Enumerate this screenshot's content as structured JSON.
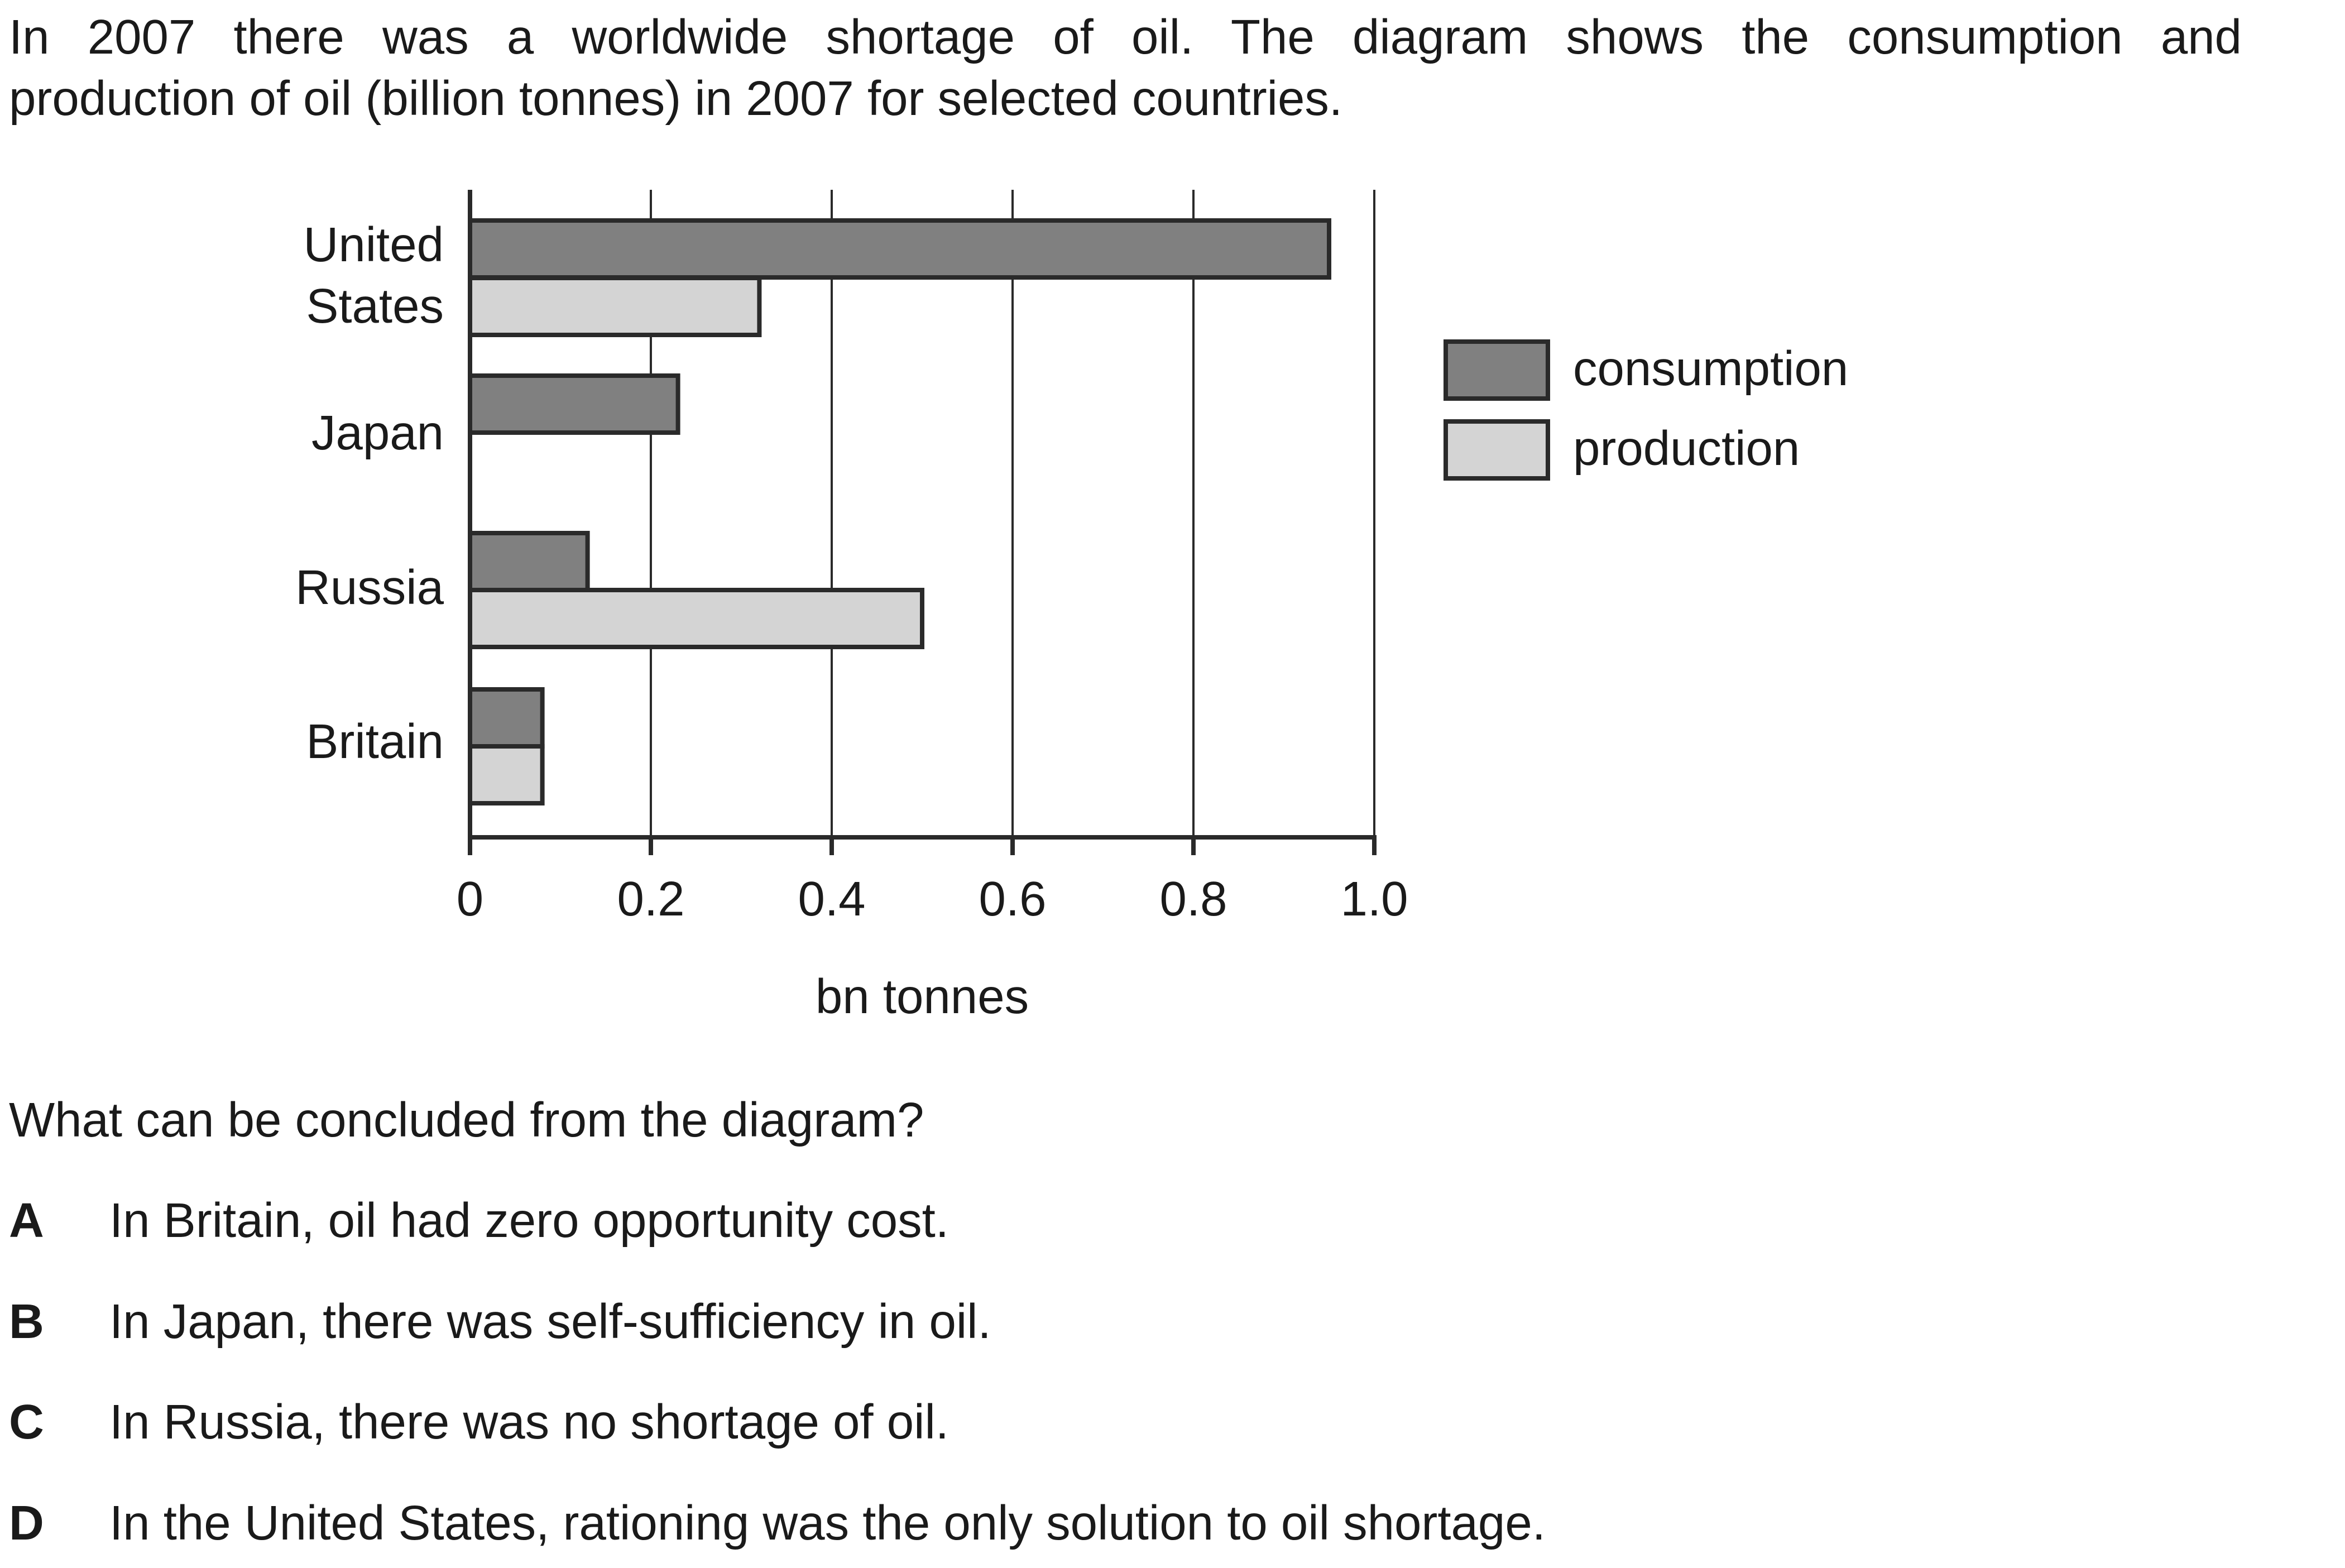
{
  "intro": {
    "line1": "In 2007 there was a worldwide shortage of oil. The diagram shows the consumption and",
    "line2": "production of oil (billion tonnes) in 2007 for selected countries."
  },
  "chart_data": {
    "type": "bar",
    "orientation": "horizontal",
    "categories": [
      [
        "United",
        "States"
      ],
      [
        "Japan"
      ],
      [
        "Russia"
      ],
      [
        "Britain"
      ]
    ],
    "series": [
      {
        "name": "consumption",
        "values": [
          0.95,
          0.23,
          0.13,
          0.08
        ],
        "color": "#808080"
      },
      {
        "name": "production",
        "values": [
          0.32,
          0,
          0.5,
          0.08
        ],
        "color": "#d4d4d4"
      }
    ],
    "xlabel": "bn tonnes",
    "xlim": [
      0,
      1.0
    ],
    "xticks": [
      "0",
      "0.2",
      "0.4",
      "0.6",
      "0.8",
      "1.0"
    ],
    "grid": "vertical",
    "legend_position": "right"
  },
  "question": "What can be concluded from the diagram?",
  "options": [
    {
      "letter": "A",
      "text": "In Britain, oil had zero opportunity cost."
    },
    {
      "letter": "B",
      "text": "In Japan, there was self-sufficiency in oil."
    },
    {
      "letter": "C",
      "text": "In Russia, there was no shortage of oil."
    },
    {
      "letter": "D",
      "text": "In the United States, rationing was the only solution to oil shortage."
    }
  ]
}
